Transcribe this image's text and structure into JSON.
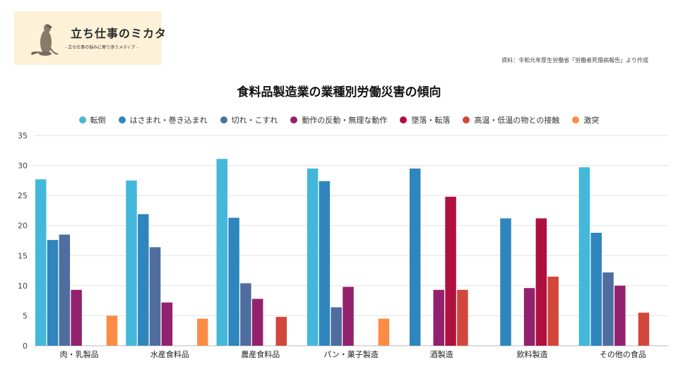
{
  "logo": {
    "title": "立ち仕事のミカタ",
    "subtitle": "- 立ち仕事の悩みに寄り添うメディア -"
  },
  "source": "資料：令和元年厚生労働省「労働者死傷病報告」より作成",
  "colors": {
    "grid": "#e3e3e3",
    "axis": "#bbbbbb",
    "tick_text": "#444444"
  },
  "chart_data": {
    "type": "bar",
    "title": "食料品製造業の業種別労働災害の傾向",
    "xlabel": "",
    "ylabel": "",
    "ylim": [
      0,
      35
    ],
    "yticks": [
      0,
      5,
      10,
      15,
      20,
      25,
      30,
      35
    ],
    "legend_position": "top-center",
    "categories": [
      "肉・乳製品",
      "水産食料品",
      "農産食料品",
      "パン・菓子製造",
      "酒製造",
      "飲料製造",
      "その他の食品"
    ],
    "series": [
      {
        "name": "転倒",
        "color": "#43b8da",
        "values": [
          27.7,
          27.5,
          31.1,
          29.5,
          null,
          null,
          29.7
        ]
      },
      {
        "name": "はさまれ・巻き込まれ",
        "color": "#2e86bd",
        "values": [
          17.6,
          21.9,
          21.3,
          27.4,
          29.5,
          21.2,
          18.8
        ]
      },
      {
        "name": "切れ・こすれ",
        "color": "#4f6d9e",
        "values": [
          18.5,
          16.4,
          10.4,
          6.4,
          null,
          null,
          12.2
        ]
      },
      {
        "name": "動作の反動・無理な動作",
        "color": "#93216e",
        "values": [
          9.3,
          7.2,
          7.8,
          9.8,
          9.3,
          9.6,
          10.0
        ]
      },
      {
        "name": "墜落・転落",
        "color": "#b0103f",
        "values": [
          null,
          null,
          null,
          null,
          24.8,
          21.2,
          null
        ]
      },
      {
        "name": "高温・低温の物との接触",
        "color": "#d2473b",
        "values": [
          null,
          null,
          4.8,
          null,
          9.3,
          11.5,
          5.5
        ]
      },
      {
        "name": "激突",
        "color": "#fb8c45",
        "values": [
          5.0,
          4.5,
          null,
          4.5,
          null,
          null,
          null
        ]
      }
    ]
  }
}
